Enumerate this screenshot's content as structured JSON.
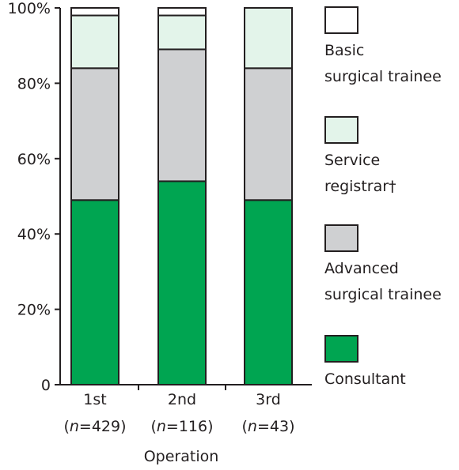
{
  "chart_data": {
    "type": "bar",
    "stacked": true,
    "xlabel": "Operation",
    "ylabel": "",
    "ylim": [
      0,
      100
    ],
    "yticks": [
      "0",
      "20%",
      "40%",
      "60%",
      "80%",
      "100%"
    ],
    "categories": [
      {
        "label": "1st",
        "n_prefix": "(",
        "n_var": "n",
        "n_value": "=429)"
      },
      {
        "label": "2nd",
        "n_prefix": "(",
        "n_var": "n",
        "n_value": "=116)"
      },
      {
        "label": "3rd",
        "n_prefix": "(",
        "n_var": "n",
        "n_value": "=43)"
      }
    ],
    "series": [
      {
        "name": "Consultant",
        "color": "#00a551",
        "values": [
          49,
          54,
          49
        ]
      },
      {
        "name": "Advanced surgical trainee",
        "legend_lines": [
          "Advanced",
          "surgical trainee"
        ],
        "color": "#cfd0d2",
        "values": [
          35,
          35,
          35
        ]
      },
      {
        "name": "Service registrar†",
        "legend_lines": [
          "Service",
          "registrar†"
        ],
        "color": "#e3f4ea",
        "values": [
          14,
          9,
          16
        ]
      },
      {
        "name": "Basic surgical trainee",
        "legend_lines": [
          "Basic",
          "surgical trainee"
        ],
        "color": "#ffffff",
        "values": [
          2,
          2,
          0
        ]
      }
    ],
    "legend_order": [
      "Basic surgical trainee",
      "Service registrar†",
      "Advanced surgical trainee",
      "Consultant"
    ],
    "legend_position": "right",
    "grid": false
  }
}
